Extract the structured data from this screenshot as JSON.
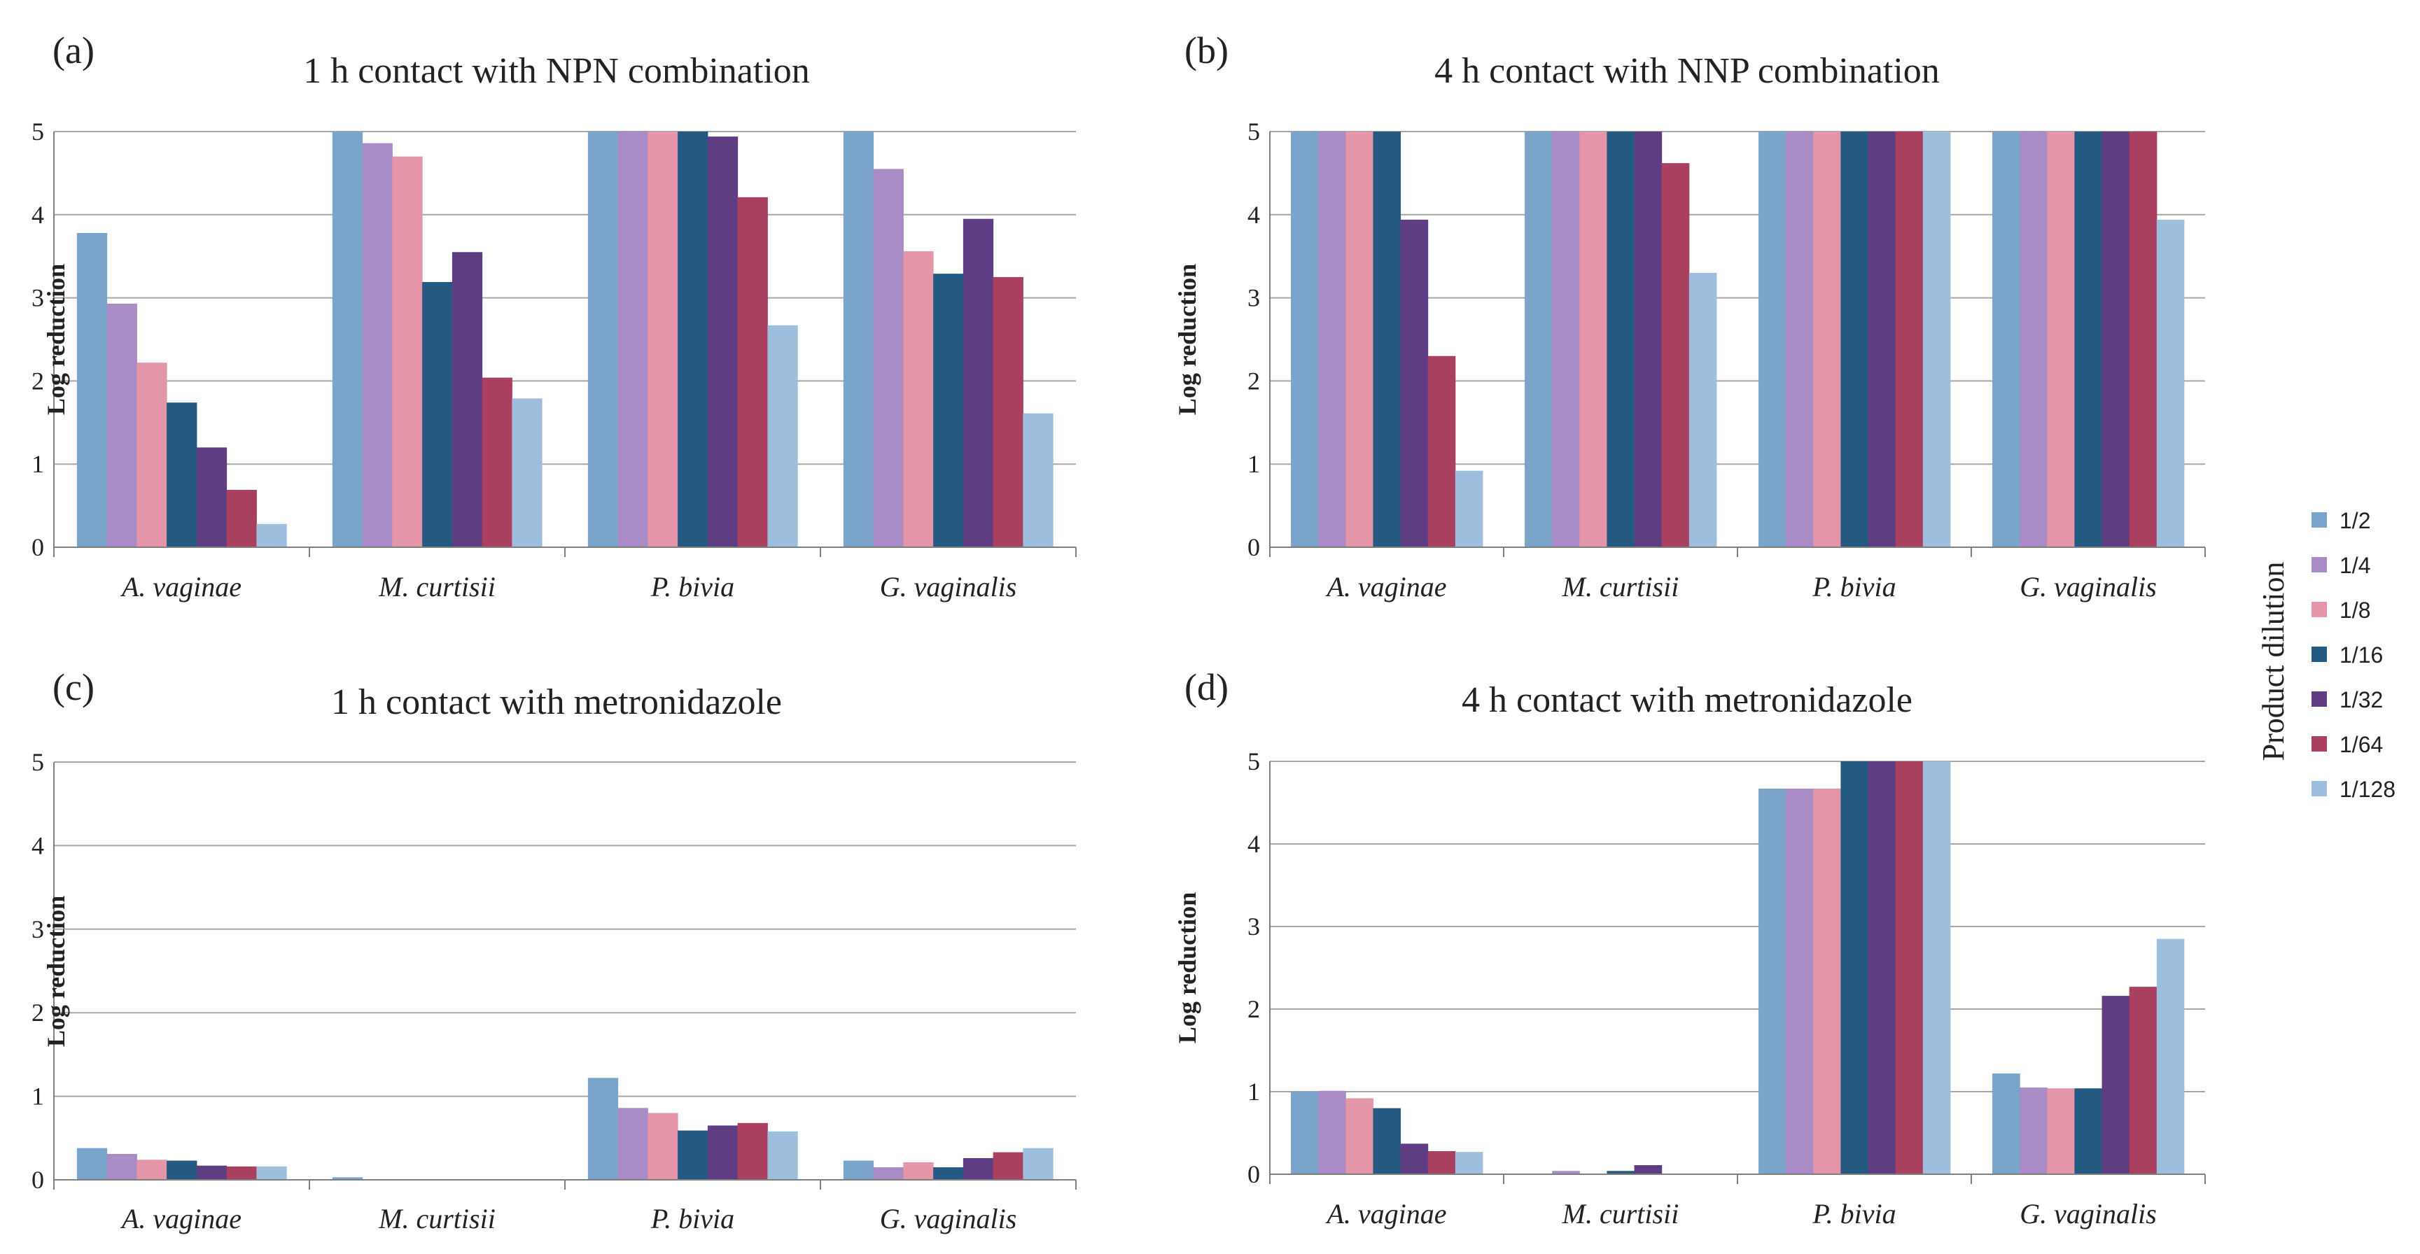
{
  "colors": [
    "#7aa4c9",
    "#a98bc6",
    "#e495a8",
    "#245a82",
    "#5f3d82",
    "#a9405f",
    "#9dbfdd"
  ],
  "legend": {
    "title": "Product dilution",
    "entries": [
      "1/2",
      "1/4",
      "1/8",
      "1/16",
      "1/32",
      "1/64",
      "1/128"
    ]
  },
  "chart_data": [
    {
      "type": "bar",
      "panel_label": "(a)",
      "title": "1 h contact with NPN combination",
      "xlabel": "",
      "ylabel": "Log reduction",
      "ylim": [
        0,
        5
      ],
      "yticks": [
        "0",
        "1",
        "2",
        "3",
        "4",
        "5"
      ],
      "categories": [
        "A. vaginae",
        "M. curtisii",
        "P. bivia",
        "G. vaginalis"
      ],
      "series": [
        {
          "name": "1/2",
          "values": [
            3.78,
            5.0,
            5.0,
            5.0
          ]
        },
        {
          "name": "1/4",
          "values": [
            2.93,
            4.86,
            5.0,
            4.55
          ]
        },
        {
          "name": "1/8",
          "values": [
            2.22,
            4.7,
            5.0,
            3.56
          ]
        },
        {
          "name": "1/16",
          "values": [
            1.74,
            3.19,
            5.0,
            3.29
          ]
        },
        {
          "name": "1/32",
          "values": [
            1.2,
            3.55,
            4.94,
            3.95
          ]
        },
        {
          "name": "1/64",
          "values": [
            0.69,
            2.04,
            4.21,
            3.25
          ]
        },
        {
          "name": "1/128",
          "values": [
            0.28,
            1.79,
            2.67,
            1.61
          ]
        }
      ]
    },
    {
      "type": "bar",
      "panel_label": "(b)",
      "title": "4 h contact with NNP combination",
      "xlabel": "",
      "ylabel": "Log reduction",
      "ylim": [
        0,
        5
      ],
      "yticks": [
        "0",
        "1",
        "2",
        "3",
        "4",
        "5"
      ],
      "categories": [
        "A. vaginae",
        "M. curtisii",
        "P. bivia",
        "G. vaginalis"
      ],
      "series": [
        {
          "name": "1/2",
          "values": [
            5.0,
            5.0,
            5.0,
            5.0
          ]
        },
        {
          "name": "1/4",
          "values": [
            5.0,
            5.0,
            5.0,
            5.0
          ]
        },
        {
          "name": "1/8",
          "values": [
            5.0,
            5.0,
            5.0,
            5.0
          ]
        },
        {
          "name": "1/16",
          "values": [
            5.0,
            5.0,
            5.0,
            5.0
          ]
        },
        {
          "name": "1/32",
          "values": [
            3.94,
            5.0,
            5.0,
            5.0
          ]
        },
        {
          "name": "1/64",
          "values": [
            2.3,
            4.62,
            5.0,
            5.0
          ]
        },
        {
          "name": "1/128",
          "values": [
            0.92,
            3.3,
            5.0,
            3.94
          ]
        }
      ]
    },
    {
      "type": "bar",
      "panel_label": "(c)",
      "title": "1 h contact with metronidazole",
      "xlabel": "",
      "ylabel": "Log reduction",
      "ylim": [
        0,
        5
      ],
      "yticks": [
        "0",
        "1",
        "2",
        "3",
        "4",
        "5"
      ],
      "categories": [
        "A. vaginae",
        "M. curtisii",
        "P. bivia",
        "G. vaginalis"
      ],
      "series": [
        {
          "name": "1/2",
          "values": [
            0.38,
            0.03,
            1.22,
            0.23
          ]
        },
        {
          "name": "1/4",
          "values": [
            0.31,
            0.0,
            0.86,
            0.15
          ]
        },
        {
          "name": "1/8",
          "values": [
            0.24,
            0.0,
            0.8,
            0.21
          ]
        },
        {
          "name": "1/16",
          "values": [
            0.23,
            0.0,
            0.59,
            0.15
          ]
        },
        {
          "name": "1/32",
          "values": [
            0.17,
            0.0,
            0.65,
            0.26
          ]
        },
        {
          "name": "1/64",
          "values": [
            0.16,
            0.0,
            0.68,
            0.33
          ]
        },
        {
          "name": "1/128",
          "values": [
            0.16,
            0.0,
            0.58,
            0.38
          ]
        }
      ]
    },
    {
      "type": "bar",
      "panel_label": "(d)",
      "title": "4 h contact with metronidazole",
      "xlabel": "",
      "ylabel": "Log reduction",
      "ylim": [
        0,
        5
      ],
      "yticks": [
        "0",
        "1",
        "2",
        "3",
        "4",
        "5"
      ],
      "categories": [
        "A. vaginae",
        "M. curtisii",
        "P. bivia",
        "G. vaginalis"
      ],
      "series": [
        {
          "name": "1/2",
          "values": [
            1.0,
            0.0,
            4.67,
            1.22
          ]
        },
        {
          "name": "1/4",
          "values": [
            1.01,
            0.04,
            4.67,
            1.05
          ]
        },
        {
          "name": "1/8",
          "values": [
            0.92,
            0.0,
            4.67,
            1.04
          ]
        },
        {
          "name": "1/16",
          "values": [
            0.8,
            0.04,
            5.0,
            1.04
          ]
        },
        {
          "name": "1/32",
          "values": [
            0.37,
            0.11,
            5.0,
            2.16
          ]
        },
        {
          "name": "1/64",
          "values": [
            0.28,
            0.0,
            5.0,
            2.27
          ]
        },
        {
          "name": "1/128",
          "values": [
            0.27,
            0.0,
            5.0,
            2.85
          ]
        }
      ]
    }
  ]
}
